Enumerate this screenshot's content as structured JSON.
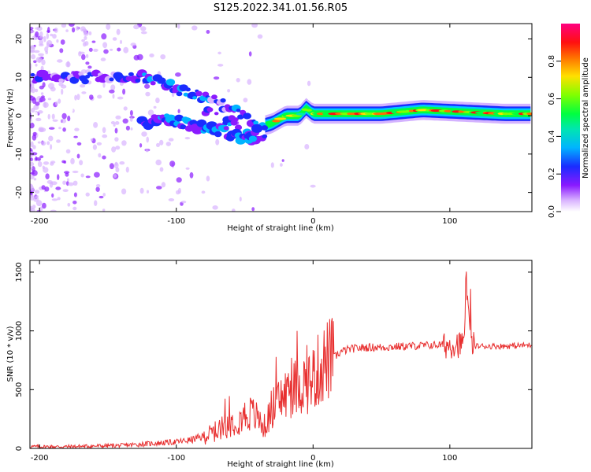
{
  "title": "S125.2022.341.01.56.R05",
  "chart_data": [
    {
      "type": "heatmap",
      "xlabel": "Height of straight line (km)",
      "ylabel": "Frequency (Hz)",
      "xlim": [
        -207,
        160
      ],
      "ylim": [
        -25,
        24
      ],
      "xticks": [
        -200,
        -100,
        0,
        100
      ],
      "yticks": [
        -20,
        -10,
        0,
        10,
        20
      ],
      "colorbar": {
        "label": "Normalized spectral amplitude",
        "range": [
          0,
          1
        ],
        "ticks": [
          "0.0",
          "0.2",
          "0.4",
          "0.6",
          "0.8"
        ],
        "colors": [
          "#ffffff",
          "#cc88ff",
          "#7a00ff",
          "#1a2cff",
          "#00c8ff",
          "#00ff60",
          "#80ff00",
          "#ffd000",
          "#ff3000",
          "#ff0070"
        ]
      },
      "ridge": {
        "x": [
          -205,
          -180,
          -160,
          -140,
          -120,
          -100,
          -80,
          -60,
          -50,
          -40,
          -30,
          -20,
          -10,
          -5,
          0,
          20,
          50,
          80,
          110,
          140,
          160
        ],
        "y": [
          10,
          10,
          10,
          10,
          10,
          7,
          5,
          2,
          0,
          -3,
          -2,
          0,
          0,
          2,
          0.5,
          0.5,
          0.5,
          1.5,
          1,
          0.5,
          0.5
        ]
      },
      "lower_branch": {
        "x": [
          -125,
          -110,
          -95,
          -80,
          -65,
          -50,
          -40
        ],
        "y": [
          -2,
          -1,
          -2,
          -3,
          -4,
          -6,
          -4
        ]
      }
    },
    {
      "type": "line",
      "xlabel": "Height of straight line (km)",
      "ylabel": "SNR (10 * v/v)",
      "xlim": [
        -207,
        160
      ],
      "ylim": [
        0,
        1600
      ],
      "xticks": [
        -200,
        -100,
        0,
        100
      ],
      "yticks": [
        0,
        500,
        1000,
        1500
      ],
      "color": "#e83030",
      "series": [
        {
          "x": [
            -207,
            -180,
            -160,
            -140,
            -120,
            -100,
            -90,
            -80,
            -70,
            -60,
            -50,
            -45,
            -40,
            -35,
            -30,
            -25,
            -20,
            -15,
            -10,
            -5,
            0,
            5,
            10,
            15,
            20,
            25,
            30,
            40,
            50,
            60,
            70,
            80,
            90,
            100,
            105,
            110,
            112,
            115,
            120,
            130,
            140,
            150,
            160
          ],
          "y": [
            15,
            15,
            20,
            25,
            40,
            55,
            70,
            100,
            150,
            220,
            280,
            300,
            250,
            180,
            350,
            400,
            460,
            500,
            540,
            560,
            600,
            680,
            750,
            770,
            820,
            840,
            850,
            860,
            860,
            865,
            870,
            875,
            880,
            880,
            900,
            850,
            1450,
            880,
            870,
            870,
            870,
            875,
            880
          ]
        }
      ]
    }
  ]
}
